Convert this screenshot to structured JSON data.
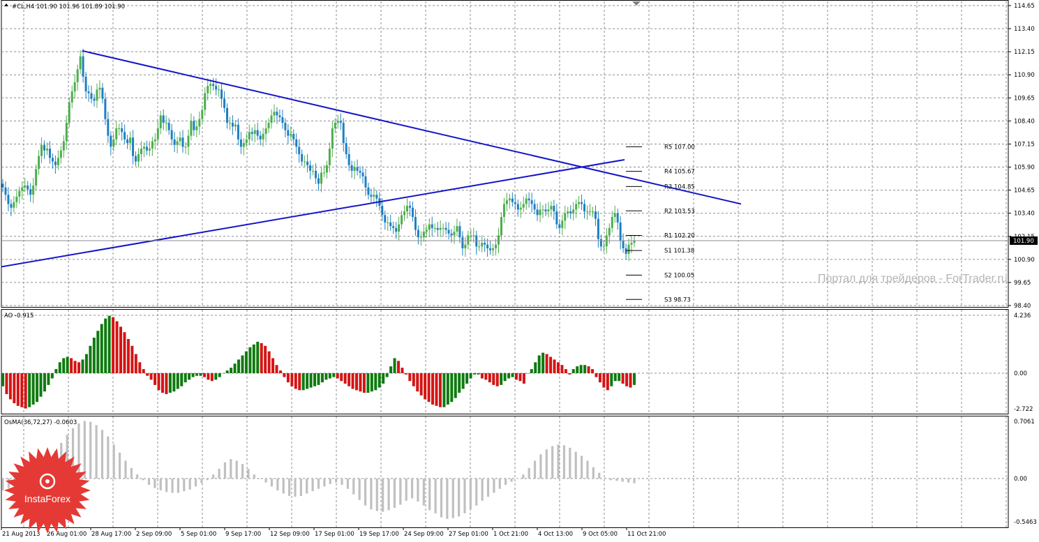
{
  "main": {
    "title": "#CL,H4  101.90 101.96 101.89 101.90",
    "price_label": "101.90",
    "y_ticks": [
      "114.65",
      "113.40",
      "112.15",
      "110.90",
      "109.65",
      "108.40",
      "107.15",
      "105.90",
      "104.65",
      "103.40",
      "102.15",
      "100.90",
      "99.65",
      "98.40"
    ],
    "pivots": [
      {
        "label": "R5 107.00",
        "value": 107.0
      },
      {
        "label": "R4 105.67",
        "value": 105.67
      },
      {
        "label": "R3 104.85",
        "value": 104.85
      },
      {
        "label": "R2 103.53",
        "value": 103.53
      },
      {
        "label": "R1 102.20",
        "value": 102.2
      },
      {
        "label": "S1 101.38",
        "value": 101.38
      },
      {
        "label": "S2 100.05",
        "value": 100.05
      },
      {
        "label": "S3 98.73",
        "value": 98.73
      }
    ],
    "watermark": "Портал для трейдеров - ForTrader.ru"
  },
  "ao": {
    "title": "AO -0.915",
    "y_ticks": [
      "4.236",
      "0.00",
      "-2.722"
    ]
  },
  "osma": {
    "title": "OsMA(36,72,27) -0.0603",
    "y_ticks": [
      "0.7061",
      "0.00",
      "-0.5463"
    ]
  },
  "x_labels": [
    "21 Aug 2013",
    "26 Aug 01:00",
    "28 Aug 17:00",
    "2 Sep 09:00",
    "5 Sep 01:00",
    "9 Sep 17:00",
    "12 Sep 09:00",
    "17 Sep 01:00",
    "19 Sep 17:00",
    "24 Sep 09:00",
    "27 Sep 01:00",
    "1 Oct 21:00",
    "4 Oct 13:00",
    "9 Oct 05:00",
    "11 Oct 21:00"
  ],
  "logo": {
    "text": "InstaForex"
  },
  "colors": {
    "bull": "#4cae4c",
    "bear": "#1e7fc1",
    "ao_up": "#0f7a0f",
    "ao_down": "#d41414",
    "osma": "#c0c0c0",
    "trendline": "#1414c8",
    "grid": "#8c8c96",
    "logo": "#e53935"
  },
  "chart_data": [
    {
      "type": "candlestick",
      "title": "#CL,H4",
      "ylim": [
        98.4,
        114.65
      ],
      "trendlines": [
        {
          "name": "resistance",
          "from": [
            "26 Aug",
            112.2
          ],
          "to": [
            "15 Oct",
            103.9
          ]
        },
        {
          "name": "support",
          "from": [
            "21 Aug",
            100.5
          ],
          "to": [
            "11 Oct",
            106.3
          ]
        }
      ],
      "closes": [
        104.8,
        104.4,
        103.9,
        103.7,
        104.0,
        104.3,
        104.6,
        104.8,
        104.9,
        104.7,
        104.4,
        104.9,
        105.8,
        106.5,
        107.1,
        106.8,
        106.9,
        106.4,
        106.2,
        106.0,
        106.4,
        106.8,
        107.3,
        108.3,
        109.4,
        110.0,
        110.5,
        111.2,
        111.9,
        110.8,
        110.0,
        109.9,
        109.6,
        109.5,
        110.1,
        110.2,
        109.6,
        108.5,
        107.6,
        107.0,
        107.4,
        108.0,
        108.0,
        107.8,
        107.4,
        107.2,
        107.5,
        106.5,
        106.2,
        106.6,
        106.9,
        107.0,
        106.8,
        106.9,
        107.3,
        107.4,
        108.0,
        108.7,
        108.3,
        108.3,
        107.9,
        107.4,
        107.1,
        107.3,
        107.5,
        107.0,
        107.0,
        107.6,
        108.4,
        107.9,
        108.1,
        108.5,
        109.0,
        109.9,
        110.3,
        110.4,
        110.3,
        110.1,
        110.1,
        109.6,
        109.1,
        108.3,
        108.3,
        108.1,
        108.2,
        107.4,
        107.0,
        107.2,
        107.4,
        107.8,
        107.7,
        107.9,
        107.6,
        107.4,
        107.7,
        108.0,
        108.3,
        108.7,
        108.9,
        108.7,
        108.6,
        108.3,
        107.9,
        107.6,
        107.7,
        107.4,
        107.0,
        106.6,
        106.2,
        106.2,
        106.0,
        105.7,
        105.7,
        105.3,
        105.0,
        105.6,
        105.6,
        106.0,
        106.9,
        108.0,
        108.3,
        108.4,
        108.3,
        107.2,
        106.6,
        106.0,
        105.7,
        105.9,
        105.7,
        105.6,
        105.4,
        104.8,
        104.4,
        104.3,
        104.4,
        104.2,
        103.8,
        103.3,
        102.9,
        102.9,
        102.7,
        102.6,
        102.4,
        102.8,
        103.3,
        103.5,
        103.8,
        103.7,
        103.2,
        102.5,
        102.1,
        102.1,
        102.4,
        102.5,
        102.8,
        102.6,
        102.6,
        102.5,
        102.6,
        102.6,
        102.5,
        102.3,
        102.2,
        102.4,
        102.7,
        102.1,
        101.5,
        101.7,
        102.2,
        102.2,
        102.2,
        101.6,
        101.6,
        101.8,
        101.7,
        101.5,
        101.4,
        101.5,
        101.7,
        102.2,
        103.2,
        103.9,
        104.1,
        104.2,
        104.0,
        103.9,
        103.6,
        103.7,
        103.9,
        104.2,
        104.1,
        103.9,
        103.6,
        103.3,
        103.6,
        103.6,
        103.5,
        103.6,
        103.8,
        103.5,
        102.8,
        102.6,
        103.0,
        103.4,
        103.5,
        103.4,
        103.6,
        103.9,
        104.0,
        103.9,
        103.5,
        103.5,
        103.5,
        103.5,
        103.1,
        102.0,
        101.6,
        101.6,
        102.2,
        102.6,
        103.2,
        103.4,
        102.9,
        101.9,
        101.5,
        101.2,
        101.7,
        101.8,
        101.9
      ],
      "x_ticks": [
        "21 Aug 2013",
        "26 Aug 01:00",
        "28 Aug 17:00",
        "2 Sep 09:00",
        "5 Sep 01:00",
        "9 Sep 17:00",
        "12 Sep 09:00",
        "17 Sep 01:00",
        "19 Sep 17:00",
        "24 Sep 09:00",
        "27 Sep 01:00",
        "1 Oct 21:00",
        "4 Oct 13:00",
        "9 Oct 05:00",
        "11 Oct 21:00"
      ]
    },
    {
      "type": "bar",
      "title": "AO -0.915",
      "ylim": [
        -2.722,
        4.236
      ],
      "values": [
        -1.0,
        -1.6,
        -2.0,
        -2.3,
        -2.5,
        -2.6,
        -2.7,
        -2.6,
        -2.4,
        -2.2,
        -1.8,
        -1.4,
        -0.9,
        -0.4,
        0.3,
        0.8,
        1.1,
        1.2,
        1.1,
        0.9,
        0.8,
        1.0,
        1.4,
        2.0,
        2.6,
        3.1,
        3.6,
        4.0,
        4.2,
        4.1,
        3.8,
        3.4,
        3.0,
        2.5,
        2.0,
        1.4,
        0.8,
        0.3,
        -0.2,
        -0.5,
        -0.9,
        -1.3,
        -1.5,
        -1.6,
        -1.5,
        -1.4,
        -1.2,
        -1.0,
        -0.7,
        -0.5,
        -0.3,
        -0.2,
        -0.2,
        -0.3,
        -0.5,
        -0.6,
        -0.5,
        -0.3,
        0.0,
        0.2,
        0.4,
        0.7,
        1.0,
        1.3,
        1.6,
        1.9,
        2.1,
        2.3,
        2.2,
        2.0,
        1.6,
        1.1,
        0.6,
        0.2,
        -0.3,
        -0.7,
        -1.0,
        -1.2,
        -1.3,
        -1.3,
        -1.2,
        -1.1,
        -1.0,
        -0.9,
        -0.7,
        -0.5,
        -0.4,
        -0.3,
        -0.4,
        -0.6,
        -0.8,
        -1.0,
        -1.2,
        -1.3,
        -1.4,
        -1.5,
        -1.5,
        -1.4,
        -1.3,
        -1.1,
        -0.8,
        -0.3,
        0.5,
        1.1,
        0.9,
        0.4,
        -0.1,
        -0.6,
        -1.0,
        -1.4,
        -1.7,
        -2.0,
        -2.2,
        -2.4,
        -2.5,
        -2.6,
        -2.6,
        -2.4,
        -2.2,
        -1.9,
        -1.5,
        -1.2,
        -0.8,
        -0.4,
        -0.1,
        -0.1,
        -0.4,
        -0.5,
        -0.7,
        -0.9,
        -1.0,
        -0.9,
        -0.6,
        -0.4,
        -0.3,
        -0.5,
        -0.6,
        -0.8,
        0.0,
        0.3,
        0.8,
        1.3,
        1.5,
        1.4,
        1.2,
        1.0,
        0.8,
        0.6,
        0.3,
        -0.1,
        0.3,
        0.5,
        0.6,
        0.6,
        0.5,
        0.3,
        -0.3,
        -0.7,
        -1.1,
        -1.3,
        -1.0,
        -0.6,
        -0.6,
        -0.8,
        -1.0,
        -1.1,
        -0.9
      ],
      "xlabel": "",
      "ylabel": ""
    },
    {
      "type": "bar",
      "title": "OsMA(36,72,27) -0.0603",
      "ylim": [
        -0.5463,
        0.7061
      ],
      "values": [
        -0.15,
        -0.12,
        -0.08,
        -0.03,
        0.01,
        0.06,
        0.1,
        0.17,
        0.25,
        0.34,
        0.44,
        0.54,
        0.62,
        0.68,
        0.71,
        0.7,
        0.66,
        0.6,
        0.52,
        0.42,
        0.32,
        0.22,
        0.13,
        0.05,
        -0.02,
        -0.08,
        -0.12,
        -0.15,
        -0.17,
        -0.18,
        -0.18,
        -0.16,
        -0.14,
        -0.1,
        -0.06,
        -0.02,
        0.05,
        0.12,
        0.2,
        0.24,
        0.22,
        0.18,
        0.12,
        0.05,
        0.0,
        -0.05,
        -0.1,
        -0.15,
        -0.19,
        -0.22,
        -0.23,
        -0.22,
        -0.19,
        -0.16,
        -0.13,
        -0.1,
        -0.07,
        -0.05,
        -0.08,
        -0.13,
        -0.2,
        -0.27,
        -0.34,
        -0.39,
        -0.41,
        -0.42,
        -0.4,
        -0.37,
        -0.33,
        -0.28,
        -0.25,
        -0.29,
        -0.34,
        -0.4,
        -0.44,
        -0.49,
        -0.51,
        -0.5,
        -0.48,
        -0.44,
        -0.39,
        -0.34,
        -0.28,
        -0.23,
        -0.18,
        -0.13,
        -0.08,
        -0.04,
        0.0,
        0.05,
        0.13,
        0.22,
        0.3,
        0.36,
        0.4,
        0.42,
        0.41,
        0.38,
        0.33,
        0.28,
        0.22,
        0.14,
        0.07,
        0.01,
        -0.02,
        -0.03,
        -0.04,
        -0.05,
        -0.06
      ]
    }
  ]
}
